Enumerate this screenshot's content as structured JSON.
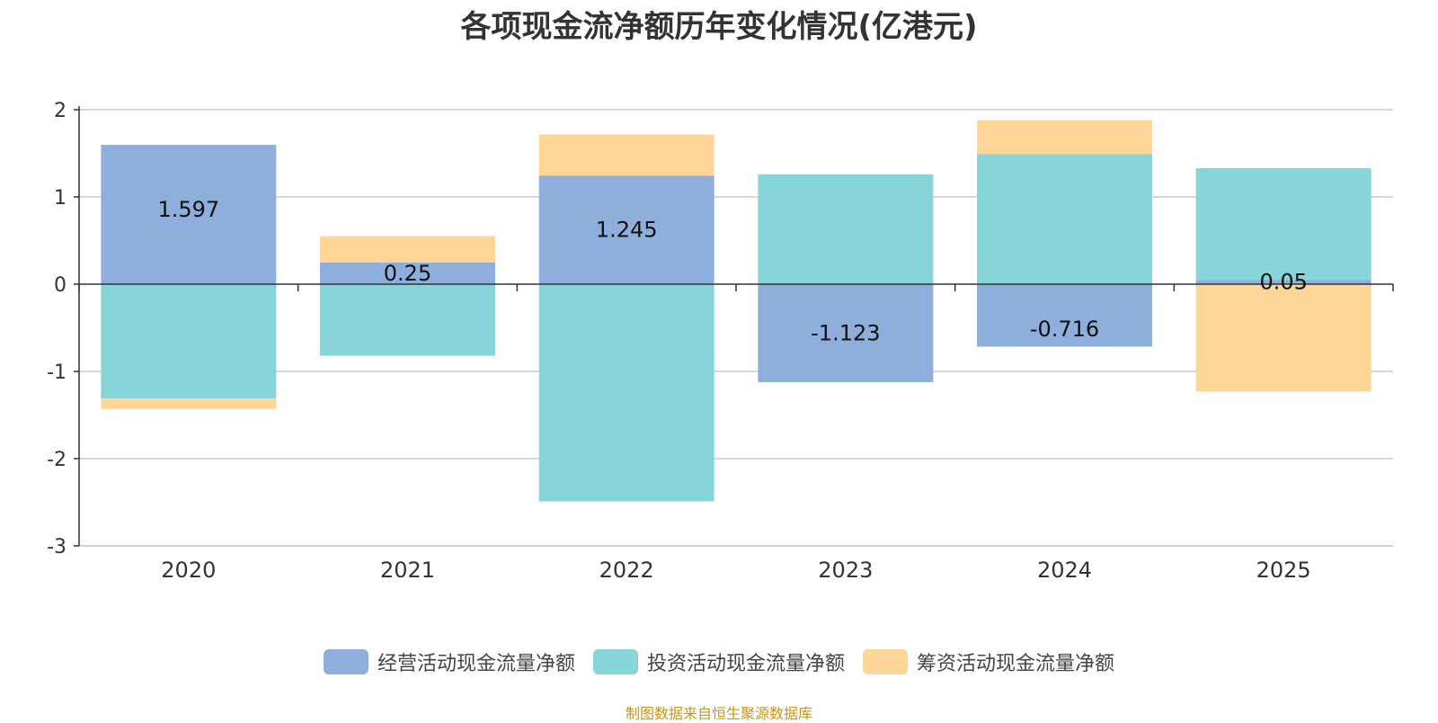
{
  "chart_data": {
    "type": "bar",
    "stacked": true,
    "title": "各项现金流净额历年变化情况(亿港元)",
    "categories": [
      "2020",
      "2021",
      "2022",
      "2023",
      "2024",
      "2025"
    ],
    "ylim": [
      -3,
      2
    ],
    "yticks": [
      "2",
      "1",
      "0",
      "-1",
      "-2",
      "-3"
    ],
    "ytick_values": [
      2,
      1,
      0,
      -1,
      -2,
      -3
    ],
    "grid": true,
    "legend_position": "bottom",
    "series": [
      {
        "name": "经营活动现金流量净额",
        "color": "#8eaedb",
        "values": [
          1.597,
          0.25,
          1.245,
          -1.123,
          -0.716,
          0.05
        ],
        "labels": [
          "1.597",
          "0.25",
          "1.245",
          "-1.123",
          "-0.716",
          "0.05"
        ]
      },
      {
        "name": "投资活动现金流量净额",
        "color": "#87d5d8",
        "values": [
          -1.31,
          -0.82,
          -2.49,
          1.26,
          1.49,
          1.28
        ],
        "labels": [
          "",
          "",
          "",
          "",
          "",
          ""
        ]
      },
      {
        "name": "筹资活动现金流量净额",
        "color": "#fed798",
        "values": [
          -0.12,
          0.3,
          0.47,
          0.0,
          0.39,
          -1.23
        ],
        "labels": [
          "",
          "",
          "",
          "",
          "",
          ""
        ]
      }
    ],
    "source": "制图数据来自恒生聚源数据库"
  }
}
